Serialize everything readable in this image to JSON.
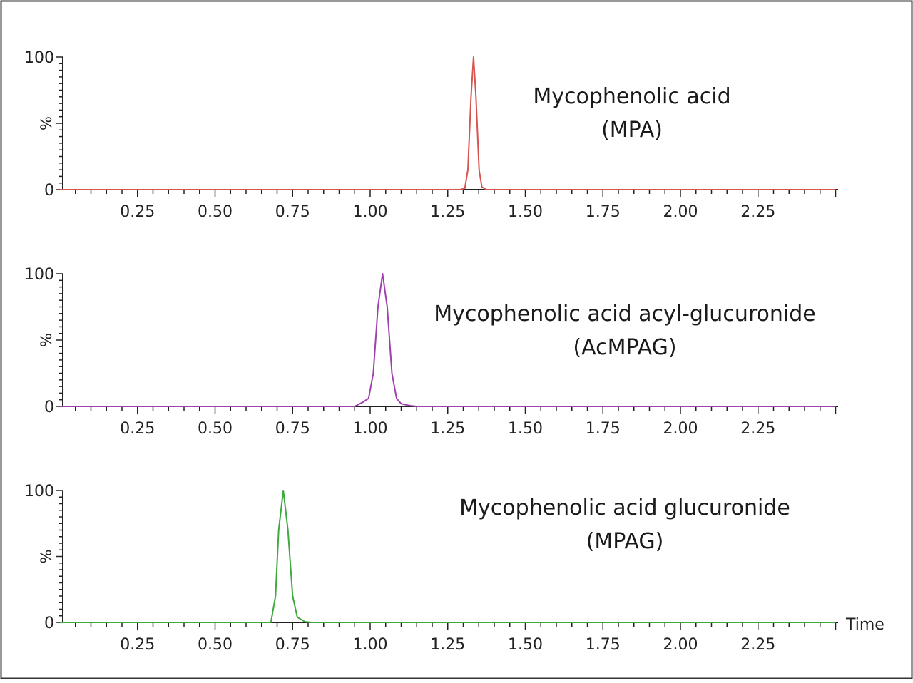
{
  "chart_data": [
    {
      "type": "line",
      "x_unit_label": "",
      "ylabel": "%",
      "y_ticks": [
        "0",
        "100"
      ],
      "x_ticks": [
        0.25,
        0.5,
        0.75,
        1.0,
        1.25,
        1.5,
        1.75,
        2.0,
        2.25
      ],
      "x_tick_labels": [
        "0.25",
        "0.50",
        "0.75",
        "1.00",
        "1.25",
        "1.50",
        "1.75",
        "2.00",
        "2.25"
      ],
      "xlim": [
        0.0,
        2.5
      ],
      "ylim": [
        0,
        100
      ],
      "color": "#d9534f",
      "annotation": [
        "Mycophenolic acid",
        "(MPA)"
      ],
      "series": [
        {
          "x": [
            0.0,
            1.29,
            1.305,
            1.315,
            1.325,
            1.333,
            1.341,
            1.351,
            1.36,
            1.375,
            2.5
          ],
          "y": [
            0,
            0,
            1,
            15,
            70,
            100,
            70,
            15,
            2,
            0,
            0
          ]
        }
      ]
    },
    {
      "type": "line",
      "x_unit_label": "",
      "ylabel": "%",
      "y_ticks": [
        "0",
        "100"
      ],
      "x_ticks": [
        0.25,
        0.5,
        0.75,
        1.0,
        1.25,
        1.5,
        1.75,
        2.0,
        2.25
      ],
      "x_tick_labels": [
        "0.25",
        "0.50",
        "0.75",
        "1.00",
        "1.25",
        "1.50",
        "1.75",
        "2.00",
        "2.25"
      ],
      "xlim": [
        0.0,
        2.5
      ],
      "ylim": [
        0,
        100
      ],
      "color": "#a040b0",
      "annotation": [
        "Mycophenolic acid acyl-glucuronide",
        "(AcMPAG)"
      ],
      "series": [
        {
          "x": [
            0.0,
            0.95,
            0.975,
            0.995,
            1.01,
            1.025,
            1.04,
            1.055,
            1.07,
            1.085,
            1.1,
            1.13,
            1.15,
            2.5
          ],
          "y": [
            0,
            0,
            3,
            6,
            25,
            75,
            100,
            75,
            25,
            6,
            2,
            0.5,
            0,
            0
          ]
        }
      ]
    },
    {
      "type": "line",
      "x_unit_label": "Time",
      "ylabel": "%",
      "y_ticks": [
        "0",
        "100"
      ],
      "x_ticks": [
        0.25,
        0.5,
        0.75,
        1.0,
        1.25,
        1.5,
        1.75,
        2.0,
        2.25
      ],
      "x_tick_labels": [
        "0.25",
        "0.50",
        "0.75",
        "1.00",
        "1.25",
        "1.50",
        "1.75",
        "2.00",
        "2.25"
      ],
      "xlim": [
        0.0,
        2.5
      ],
      "ylim": [
        0,
        100
      ],
      "color": "#3fa83f",
      "annotation": [
        "Mycophenolic acid glucuronide",
        "(MPAG)"
      ],
      "series": [
        {
          "x": [
            0.0,
            0.68,
            0.695,
            0.705,
            0.72,
            0.735,
            0.75,
            0.765,
            0.79,
            0.81,
            2.5
          ],
          "y": [
            0,
            0,
            20,
            70,
            100,
            70,
            20,
            4,
            0.5,
            0,
            0
          ]
        }
      ]
    }
  ]
}
